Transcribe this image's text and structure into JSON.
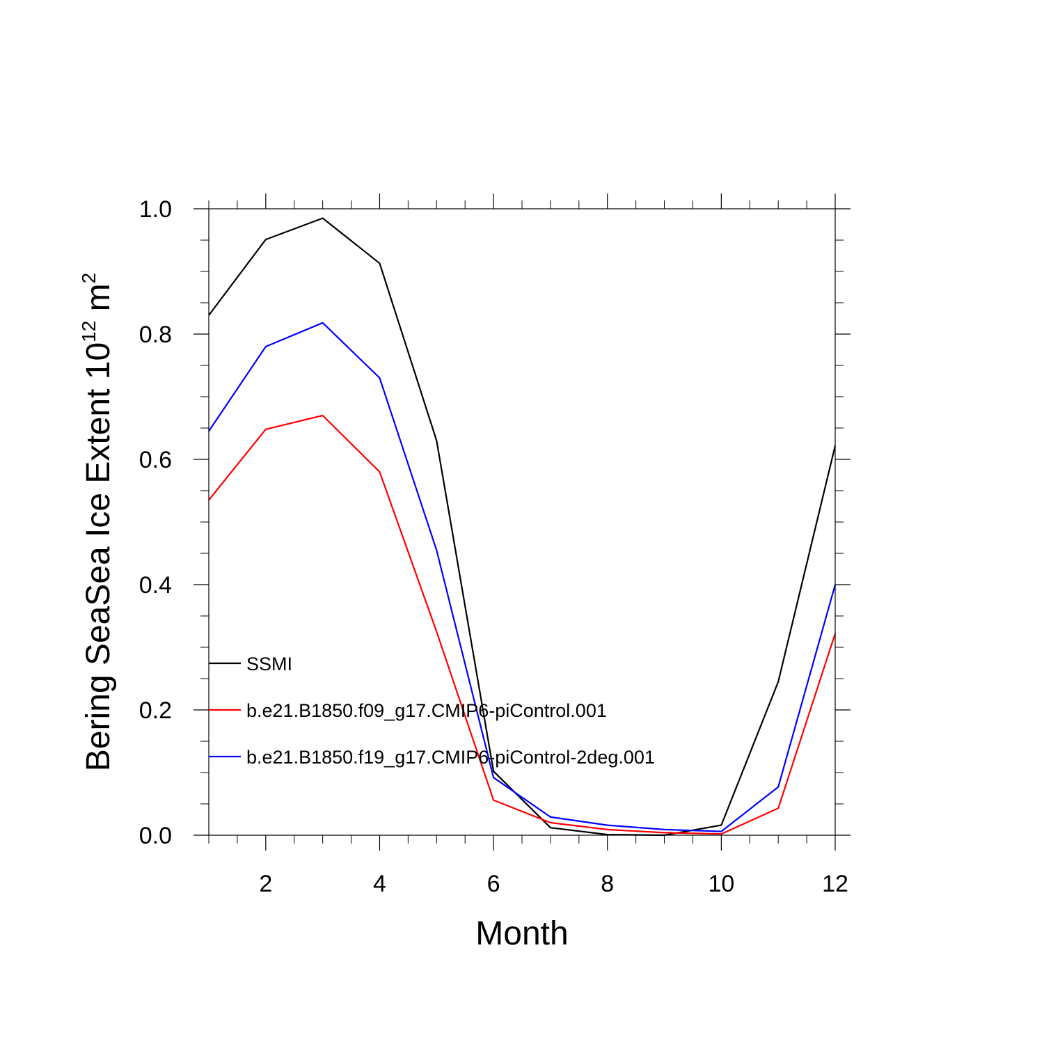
{
  "chart_data": {
    "type": "line",
    "title": "",
    "xlabel": "Month",
    "ylabel": "Bering SeaSea Ice Extent 10",
    "ylabel_exp": "12",
    "ylabel_tail": " m",
    "ylabel_exp2": "2",
    "xlim": [
      1,
      12
    ],
    "ylim": [
      0,
      1
    ],
    "xticks": [
      2,
      4,
      6,
      8,
      10,
      12
    ],
    "xtick_labels": [
      "2",
      "4",
      "6",
      "8",
      "10",
      "12"
    ],
    "yticks": [
      0,
      0.2,
      0.4,
      0.6,
      0.8,
      1.0
    ],
    "ytick_labels": [
      "0.0",
      "0.2",
      "0.4",
      "0.6",
      "0.8",
      "1.0"
    ],
    "grid": false,
    "legend_placement": "left-lower-middle",
    "x": [
      1,
      2,
      3,
      4,
      5,
      6,
      7,
      8,
      9,
      10,
      11,
      12
    ],
    "series": [
      {
        "name": "SSMI",
        "color": "#000000",
        "values": [
          0.83,
          0.951,
          0.985,
          0.913,
          0.63,
          0.102,
          0.012,
          0.001,
          0.0,
          0.016,
          0.245,
          0.622
        ]
      },
      {
        "name": "b.e21.B1850.f09_g17.CMIP6-piControl.001",
        "color": "#ff0000",
        "values": [
          0.535,
          0.648,
          0.67,
          0.58,
          0.325,
          0.056,
          0.02,
          0.009,
          0.004,
          0.002,
          0.043,
          0.322
        ]
      },
      {
        "name": "b.e21.B1850.f19_g17.CMIP6-piControl-2deg.001",
        "color": "#0000ff",
        "values": [
          0.645,
          0.78,
          0.818,
          0.73,
          0.455,
          0.092,
          0.029,
          0.016,
          0.009,
          0.006,
          0.077,
          0.4
        ]
      }
    ]
  }
}
